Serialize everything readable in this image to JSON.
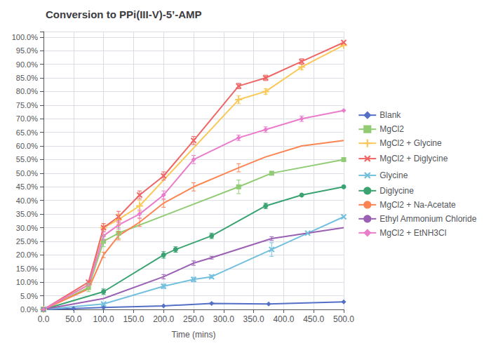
{
  "chart_data": {
    "type": "line",
    "title": "Conversion to PPi(III-V)-5’-AMP",
    "x_label": "Time (mins)",
    "xlim": [
      0,
      500
    ],
    "xticks": [
      {
        "value": 0,
        "label": "0.0"
      },
      {
        "value": 50,
        "label": "50.0"
      },
      {
        "value": 100,
        "label": "100.0"
      },
      {
        "value": 150,
        "label": "150.0"
      },
      {
        "value": 200,
        "label": "200.0"
      },
      {
        "value": 250,
        "label": "250.0"
      },
      {
        "value": 300,
        "label": "300.0"
      },
      {
        "value": 350,
        "label": "350.0"
      },
      {
        "value": 400,
        "label": "400.0"
      },
      {
        "value": 450,
        "label": "450.0"
      },
      {
        "value": 500,
        "label": "500.0"
      }
    ],
    "ylim": [
      0,
      1.02
    ],
    "yticks": [
      {
        "value": 0,
        "label": "0.0%"
      },
      {
        "value": 0.05,
        "label": "5.0%"
      },
      {
        "value": 0.1,
        "label": "10.0%"
      },
      {
        "value": 0.15,
        "label": "15.0%"
      },
      {
        "value": 0.2,
        "label": "20.0%"
      },
      {
        "value": 0.25,
        "label": "25.0%"
      },
      {
        "value": 0.3,
        "label": "30.0%"
      },
      {
        "value": 0.35,
        "label": "35.0%"
      },
      {
        "value": 0.4,
        "label": "40.0%"
      },
      {
        "value": 0.45,
        "label": "45.0%"
      },
      {
        "value": 0.5,
        "label": "50.0%"
      },
      {
        "value": 0.55,
        "label": "55.0%"
      },
      {
        "value": 0.6,
        "label": "60.0%"
      },
      {
        "value": 0.65,
        "label": "65.0%"
      },
      {
        "value": 0.7,
        "label": "70.0%"
      },
      {
        "value": 0.75,
        "label": "75.0%"
      },
      {
        "value": 0.8,
        "label": "80.0%"
      },
      {
        "value": 0.85,
        "label": "85.0%"
      },
      {
        "value": 0.9,
        "label": "90.0%"
      },
      {
        "value": 0.95,
        "label": "95.0%"
      },
      {
        "value": 1.0,
        "label": "100.0%"
      }
    ],
    "grid": true,
    "legend": "right",
    "series": [
      {
        "name": "Blank",
        "marker": "diamond",
        "x": [
          0,
          50,
          100,
          200,
          280,
          375,
          500
        ],
        "values": [
          0,
          0.003,
          0.007,
          0.013,
          0.022,
          0.02,
          0.028
        ],
        "yerr": [
          0,
          0,
          0,
          0,
          0.002,
          0,
          0
        ]
      },
      {
        "name": "MgCl2",
        "marker": "square",
        "x": [
          0,
          75,
          100,
          125,
          325,
          380,
          500
        ],
        "values": [
          0,
          0.08,
          0.25,
          0.28,
          0.45,
          0.5,
          0.55
        ],
        "yerr": [
          0,
          0.015,
          0.02,
          0.02,
          0.025,
          0,
          0
        ]
      },
      {
        "name": "MgCl2 + Glycine",
        "marker": "plus",
        "x": [
          0,
          75,
          100,
          125,
          160,
          325,
          370,
          430,
          500
        ],
        "values": [
          0,
          0.09,
          0.3,
          0.33,
          0.38,
          0.77,
          0.8,
          0.89,
          0.97
        ],
        "yerr": [
          0,
          0,
          0.015,
          0.02,
          0.02,
          0.015,
          0.01,
          0.01,
          0
        ]
      },
      {
        "name": "MgCl2 + Diglycine",
        "marker": "x",
        "x": [
          0,
          75,
          100,
          125,
          160,
          200,
          250,
          325,
          370,
          430,
          500
        ],
        "values": [
          0,
          0.1,
          0.3,
          0.34,
          0.42,
          0.49,
          0.62,
          0.82,
          0.85,
          0.91,
          0.98
        ],
        "yerr": [
          0,
          0,
          0.015,
          0.02,
          0.015,
          0.015,
          0.015,
          0.01,
          0.01,
          0.01,
          0
        ]
      },
      {
        "name": "Glycine",
        "marker": "x",
        "x": [
          0,
          100,
          200,
          250,
          280,
          380,
          440,
          500
        ],
        "values": [
          0,
          0.02,
          0.085,
          0.11,
          0.12,
          0.22,
          0.28,
          0.34
        ],
        "yerr": [
          0,
          0,
          0.008,
          0.008,
          0.006,
          0.025,
          0,
          0
        ]
      },
      {
        "name": "Diglycine",
        "marker": "circle",
        "x": [
          0,
          100,
          200,
          220,
          280,
          370,
          430,
          500
        ],
        "values": [
          0,
          0.065,
          0.2,
          0.22,
          0.27,
          0.38,
          0.42,
          0.45
        ],
        "yerr": [
          0,
          0.01,
          0.012,
          0.01,
          0.01,
          0.01,
          0,
          0
        ]
      },
      {
        "name": "MgCl2 + Na-Acetate",
        "marker": "none",
        "x": [
          0,
          75,
          100,
          125,
          160,
          200,
          250,
          325,
          370,
          430,
          500
        ],
        "values": [
          0,
          0.075,
          0.2,
          0.27,
          0.32,
          0.39,
          0.45,
          0.52,
          0.56,
          0.6,
          0.62
        ],
        "yerr": [
          0,
          0,
          0.01,
          0.015,
          0.015,
          0.015,
          0.015,
          0.015,
          0,
          0,
          0
        ]
      },
      {
        "name": "Ethyl Ammonium Chloride",
        "marker": "none",
        "x": [
          0,
          100,
          200,
          250,
          280,
          380,
          440,
          500
        ],
        "values": [
          0,
          0.04,
          0.12,
          0.17,
          0.19,
          0.26,
          0.28,
          0.3
        ],
        "yerr": [
          0,
          0,
          0.008,
          0.008,
          0.005,
          0.007,
          0,
          0
        ]
      },
      {
        "name": "MgCl2 + EtNH3Cl",
        "marker": "diamond",
        "x": [
          0,
          75,
          100,
          125,
          160,
          200,
          250,
          325,
          370,
          430,
          500
        ],
        "values": [
          0,
          0.09,
          0.27,
          0.31,
          0.35,
          0.42,
          0.55,
          0.63,
          0.66,
          0.7,
          0.73
        ],
        "yerr": [
          0,
          0,
          0.015,
          0.015,
          0.015,
          0.015,
          0.015,
          0.01,
          0.01,
          0.01,
          0
        ]
      }
    ]
  }
}
